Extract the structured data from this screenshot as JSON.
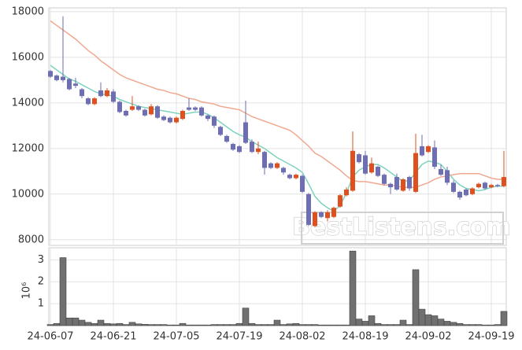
{
  "chart_data": [
    {
      "type": "candlestick",
      "annotation": "BestListens.com",
      "up_color": "#e0501e",
      "down_color": "#6e6eb4",
      "open": [
        15400,
        15200,
        15150,
        15050,
        14850,
        14600,
        14200,
        13950,
        14550,
        14300,
        14500,
        14050,
        13650,
        13700,
        13850,
        13700,
        13500,
        13850,
        13400,
        13350,
        13150,
        13300,
        13800,
        13800,
        13800,
        13450,
        13400,
        12950,
        12550,
        12200,
        12100,
        13150,
        12300,
        11850,
        11850,
        11350,
        11150,
        11150,
        10850,
        10700,
        10800,
        10000,
        8600,
        9200,
        8950,
        9000,
        9450,
        9950,
        10150,
        11750,
        11700,
        10950,
        11200,
        10850,
        10450,
        10750,
        10150,
        10750,
        10100,
        12100,
        11850,
        12050,
        11100,
        11050,
        10500,
        10100,
        10200,
        10000,
        10300,
        10500,
        10300,
        10400,
        10350
      ],
      "high": [
        15450,
        15250,
        17800,
        15100,
        15100,
        14650,
        14250,
        14250,
        14900,
        14650,
        14600,
        14100,
        13700,
        14300,
        13900,
        13750,
        13950,
        13900,
        13450,
        13400,
        13400,
        13700,
        14200,
        13850,
        13850,
        13500,
        13450,
        13000,
        12600,
        12250,
        12150,
        14100,
        12400,
        12300,
        11900,
        11400,
        11400,
        11200,
        10900,
        10900,
        10850,
        10050,
        9250,
        9250,
        9300,
        9450,
        10000,
        10300,
        12750,
        11800,
        11900,
        11600,
        11250,
        10900,
        10500,
        10900,
        10700,
        10800,
        12650,
        12600,
        12150,
        12350,
        11300,
        11200,
        10600,
        10150,
        10250,
        10300,
        10500,
        10550,
        10450,
        10450,
        11900
      ],
      "low": [
        15100,
        14950,
        14900,
        14550,
        14650,
        14200,
        13900,
        13900,
        14250,
        14250,
        14000,
        13550,
        13400,
        13650,
        13650,
        13400,
        13450,
        13300,
        13200,
        13100,
        13100,
        13250,
        13650,
        13650,
        13400,
        13200,
        12900,
        12550,
        12250,
        11900,
        11800,
        12200,
        11800,
        11750,
        10850,
        11100,
        11100,
        10850,
        10650,
        10650,
        10050,
        8600,
        8550,
        8950,
        8800,
        8950,
        9400,
        9900,
        10100,
        11350,
        10850,
        10900,
        10750,
        10400,
        10000,
        10150,
        10100,
        10150,
        10050,
        11650,
        11800,
        11100,
        10800,
        10400,
        10050,
        9750,
        9900,
        9950,
        10250,
        10200,
        10250,
        10300,
        10300
      ],
      "close": [
        15150,
        15000,
        15000,
        14600,
        14750,
        14300,
        13950,
        14200,
        14300,
        14550,
        14050,
        13600,
        13450,
        13850,
        13700,
        13450,
        13850,
        13350,
        13250,
        13150,
        13350,
        13650,
        13700,
        13700,
        13450,
        13300,
        13000,
        12600,
        12300,
        11950,
        11850,
        12250,
        11850,
        12000,
        11150,
        11150,
        11350,
        10950,
        10700,
        10850,
        10100,
        8650,
        9200,
        9000,
        9200,
        9400,
        9950,
        10200,
        11900,
        11400,
        10900,
        11350,
        10800,
        10450,
        10300,
        10200,
        10650,
        10250,
        11800,
        11700,
        12100,
        11200,
        10850,
        10500,
        10100,
        9850,
        9950,
        10250,
        10450,
        10250,
        10400,
        10350,
        10750
      ],
      "series": [
        {
          "color": "#7dd3bd",
          "values": [
            15650,
            15450,
            15250,
            15050,
            14950,
            14800,
            14650,
            14500,
            14400,
            14350,
            14300,
            14150,
            14050,
            13950,
            13850,
            13800,
            13750,
            13700,
            13650,
            13600,
            13550,
            13500,
            13550,
            13600,
            13600,
            13500,
            13350,
            13150,
            12950,
            12750,
            12600,
            12500,
            12300,
            12150,
            12000,
            11800,
            11600,
            11450,
            11300,
            11150,
            10950,
            10450,
            9900,
            9600,
            9400,
            9250,
            9500,
            10050,
            10750,
            11050,
            11200,
            11300,
            11300,
            11150,
            10950,
            10750,
            10550,
            10600,
            10950,
            11300,
            11450,
            11400,
            11300,
            11000,
            10650,
            10400,
            10250,
            10200,
            10150,
            10200,
            10300,
            10350,
            10350
          ]
        },
        {
          "color": "#f0a890",
          "values": [
            17600,
            17400,
            17200,
            17000,
            16800,
            16550,
            16300,
            16100,
            15850,
            15650,
            15450,
            15250,
            15100,
            15000,
            14900,
            14800,
            14700,
            14600,
            14550,
            14450,
            14400,
            14300,
            14200,
            14150,
            14050,
            14000,
            13950,
            13850,
            13800,
            13750,
            13700,
            13550,
            13400,
            13300,
            13200,
            13100,
            13000,
            12900,
            12800,
            12600,
            12350,
            12100,
            11800,
            11650,
            11450,
            11250,
            11050,
            10800,
            10600,
            10550,
            10550,
            10500,
            10450,
            10400,
            10400,
            10350,
            10300,
            10300,
            10300,
            10400,
            10500,
            10650,
            10750,
            10800,
            10850,
            10900,
            10900,
            10900,
            10900,
            10800,
            10700,
            10650,
            10650
          ]
        }
      ],
      "ylim": [
        7750,
        18170
      ],
      "yticks": [
        8000,
        10000,
        12000,
        14000,
        16000,
        18000
      ],
      "grid": true
    },
    {
      "type": "bar",
      "ylabel": "10⁶",
      "color": "#707070",
      "categories": [
        "24-06-07",
        null,
        null,
        null,
        null,
        null,
        null,
        null,
        null,
        null,
        "24-06-21",
        null,
        null,
        null,
        null,
        null,
        null,
        null,
        null,
        null,
        "24-07-05",
        null,
        null,
        null,
        null,
        null,
        null,
        null,
        null,
        null,
        "24-07-19",
        null,
        null,
        null,
        null,
        null,
        null,
        null,
        null,
        null,
        "24-08-02",
        null,
        null,
        null,
        null,
        null,
        null,
        null,
        null,
        null,
        "24-08-19",
        null,
        null,
        null,
        null,
        null,
        null,
        null,
        null,
        null,
        "24-09-02",
        null,
        null,
        null,
        null,
        null,
        null,
        null,
        null,
        null,
        "24-09-19",
        null,
        null
      ],
      "values": [
        0.05,
        0.1,
        3.1,
        0.35,
        0.35,
        0.25,
        0.15,
        0.1,
        0.25,
        0.1,
        0.08,
        0.1,
        0.05,
        0.15,
        0.08,
        0.06,
        0.05,
        0.05,
        0.05,
        0.03,
        0.03,
        0.1,
        0.03,
        0.03,
        0.03,
        0.03,
        0.05,
        0.05,
        0.05,
        0.05,
        0.1,
        0.8,
        0.1,
        0.05,
        0.05,
        0.05,
        0.25,
        0.05,
        0.08,
        0.1,
        0.05,
        0.05,
        0.05,
        0.03,
        0.03,
        0.03,
        0.03,
        0.03,
        3.4,
        0.3,
        0.2,
        0.45,
        0.1,
        0.05,
        0.05,
        0.05,
        0.25,
        0.05,
        2.55,
        0.75,
        0.5,
        0.45,
        0.3,
        0.2,
        0.15,
        0.1,
        0.05,
        0.05,
        0.05,
        0.03,
        0.03,
        0.05,
        0.65
      ],
      "ylim": [
        0,
        3.55
      ],
      "yticks": [
        1,
        2,
        3
      ],
      "grid": true
    }
  ]
}
